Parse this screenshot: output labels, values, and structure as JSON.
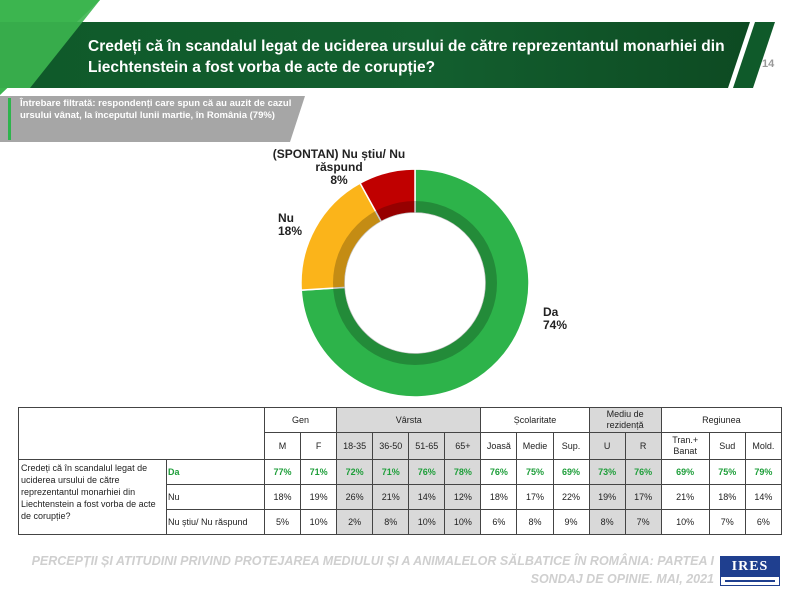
{
  "header": {
    "title": "Credeți  că în scandalul legat de uciderea ursului de către reprezentantul monarhiei din Liechtenstein  a fost vorba de acte de corupție?",
    "page_number": "14"
  },
  "filter_note": "Întrebare filtrată: respondenți care spun că au auzit de cazul ursului vânat, la începutul lunii martie, în România (79%)",
  "chart_data": {
    "type": "pie",
    "variant": "donut",
    "slices": [
      {
        "label": "Da",
        "value": 74,
        "display": "74%",
        "color": "#2db34a"
      },
      {
        "label": "Nu",
        "value": 18,
        "display": "18%",
        "color": "#fbb41a"
      },
      {
        "label": "(SPONTAN) Nu știu/ Nu răspund",
        "value": 8,
        "display": "8%",
        "color": "#c00000"
      }
    ]
  },
  "table": {
    "groups": [
      {
        "label": "Gen",
        "span": 2,
        "gray": false
      },
      {
        "label": "Vârsta",
        "span": 4,
        "gray": true
      },
      {
        "label": "Școlaritate",
        "span": 3,
        "gray": false
      },
      {
        "label": "Mediu de rezidență",
        "span": 2,
        "gray": true
      },
      {
        "label": "Regiunea",
        "span": 3,
        "gray": false
      }
    ],
    "columns": [
      "M",
      "F",
      "18-35",
      "36-50",
      "51-65",
      "65+",
      "Joasă",
      "Medie",
      "Sup.",
      "U",
      "R",
      "Tran.+ Banat",
      "Sud",
      "Mold."
    ],
    "question": "Credeți  că în scandalul legat de uciderea ursului de către reprezentantul monarhiei din Liechtenstein a fost vorba de acte de corupție?",
    "rows": [
      {
        "label": "Da",
        "values": [
          "77%",
          "71%",
          "72%",
          "71%",
          "76%",
          "78%",
          "76%",
          "75%",
          "69%",
          "73%",
          "76%",
          "69%",
          "75%",
          "79%"
        ],
        "highlight": true
      },
      {
        "label": "Nu",
        "values": [
          "18%",
          "19%",
          "26%",
          "21%",
          "14%",
          "12%",
          "18%",
          "17%",
          "22%",
          "19%",
          "17%",
          "21%",
          "18%",
          "14%"
        ],
        "highlight": false
      },
      {
        "label": "Nu știu/ Nu răspund",
        "values": [
          "5%",
          "10%",
          "2%",
          "8%",
          "10%",
          "10%",
          "6%",
          "8%",
          "9%",
          "8%",
          "7%",
          "10%",
          "7%",
          "6%"
        ],
        "highlight": false
      }
    ]
  },
  "footer": {
    "line1": "PERCEPȚII ȘI ATITUDINI PRIVIND PROTEJAREA MEDIULUI ȘI A ANIMALELOR SĂLBATICE ÎN ROMÂNIA: PARTEA I",
    "line2": "SONDAJ DE OPINIE. MAI, 2021",
    "logo_text": "IRES"
  },
  "colors": {
    "header_green_dark": "#0f5a2a",
    "header_green_light": "#2eb44d",
    "filter_gray": "#a6a6a6",
    "accent_green": "#1e9e3a"
  }
}
